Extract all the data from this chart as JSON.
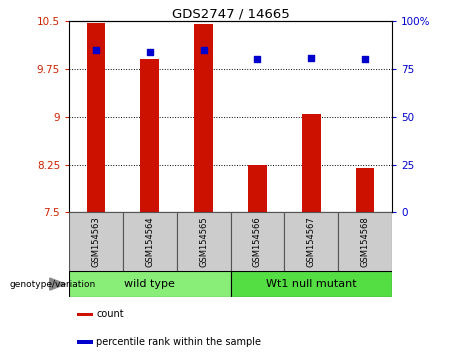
{
  "title": "GDS2747 / 14665",
  "samples": [
    "GSM154563",
    "GSM154564",
    "GSM154565",
    "GSM154566",
    "GSM154567",
    "GSM154568"
  ],
  "bar_values": [
    10.47,
    9.9,
    10.45,
    8.25,
    9.05,
    8.2
  ],
  "percentile_values": [
    85,
    84,
    85,
    80,
    81,
    80
  ],
  "bar_color": "#cc1100",
  "dot_color": "#0000cc",
  "ylim_left": [
    7.5,
    10.5
  ],
  "ylim_right": [
    0,
    100
  ],
  "yticks_left": [
    7.5,
    8.25,
    9.0,
    9.75,
    10.5
  ],
  "ytick_labels_left": [
    "7.5",
    "8.25",
    "9",
    "9.75",
    "10.5"
  ],
  "yticks_right": [
    0,
    25,
    50,
    75,
    100
  ],
  "ytick_labels_right": [
    "0",
    "25",
    "50",
    "75",
    "100%"
  ],
  "groups": [
    {
      "label": "wild type",
      "indices": [
        0,
        1,
        2
      ],
      "color": "#88ee77"
    },
    {
      "label": "Wt1 null mutant",
      "indices": [
        3,
        4,
        5
      ],
      "color": "#55dd44"
    }
  ],
  "group_label": "genotype/variation",
  "legend_items": [
    {
      "color": "#cc1100",
      "label": "count"
    },
    {
      "color": "#0000cc",
      "label": "percentile rank within the sample"
    }
  ],
  "bar_width": 0.35,
  "plot_bg": "#ffffff",
  "left_tick_color": "#cc2200",
  "right_tick_color": "#0000cc",
  "label_bg": "#cccccc",
  "label_border": "#888888"
}
